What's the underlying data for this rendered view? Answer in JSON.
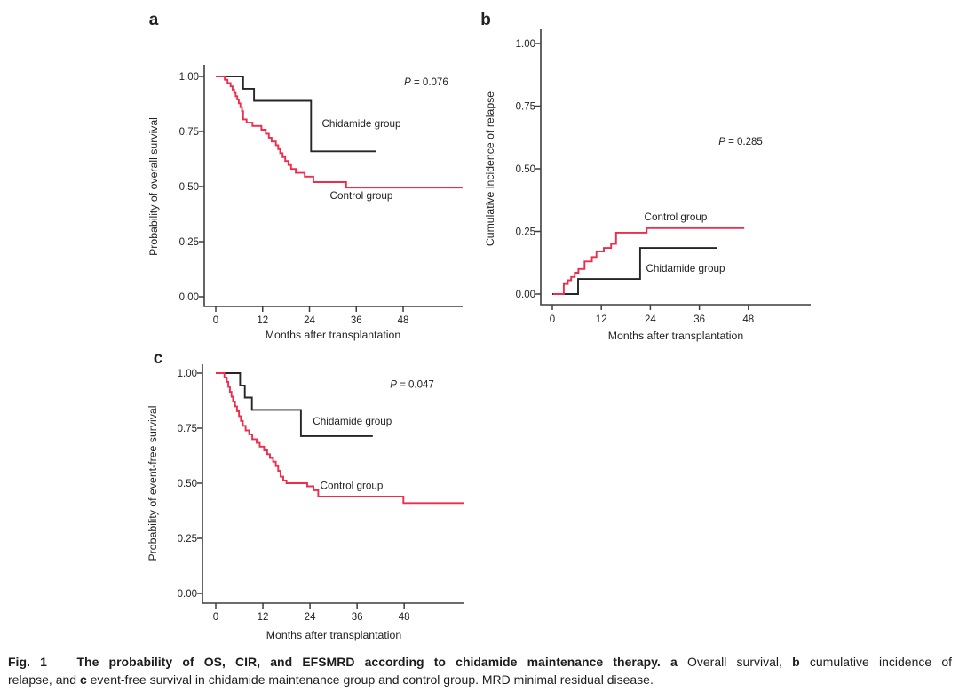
{
  "colors": {
    "control": "#ee2c4c",
    "chidamide": "#262626",
    "axis": "#3d3d3d",
    "text": "#222222"
  },
  "chart_data": [
    {
      "type": "line",
      "subtype": "kaplan-meier-step",
      "panel_letter": "a",
      "title": "",
      "xlabel": "Months after transplantation",
      "ylabel": "Probability of overall survival",
      "x_ticks": [
        0,
        12,
        24,
        36,
        48
      ],
      "x_tick_labels": [
        "0",
        "12",
        "24",
        "36",
        "48"
      ],
      "y_ticks": [
        1.0,
        0.75,
        0.5,
        0.25,
        0.0
      ],
      "y_tick_labels": [
        "1.00",
        "0.75",
        "0.50",
        "0.25",
        "0.00"
      ],
      "xlim": [
        -3,
        63.2
      ],
      "ylim": [
        -0.05,
        1.05
      ],
      "p_annotation": {
        "italic": "P",
        "rest": " = 0.076",
        "x": 53.9,
        "y": 0.976
      },
      "series": [
        {
          "name": "Chidamide group",
          "color_key": "chidamide",
          "label": {
            "text": "Chidamide group",
            "x": 37.3,
            "y": 0.786
          },
          "points": [
            [
              0,
              1.0
            ],
            [
              7,
              0.944
            ],
            [
              9.8,
              0.889
            ],
            [
              24.4,
              0.66
            ],
            [
              41,
              0.66
            ]
          ]
        },
        {
          "name": "Control group",
          "color_key": "control",
          "label": {
            "text": "Control group",
            "x": 37.3,
            "y": 0.46
          },
          "points": [
            [
              0,
              1.0
            ],
            [
              2.3,
              0.985
            ],
            [
              3.0,
              0.97
            ],
            [
              3.8,
              0.955
            ],
            [
              4.3,
              0.94
            ],
            [
              4.7,
              0.925
            ],
            [
              5.1,
              0.91
            ],
            [
              5.5,
              0.895
            ],
            [
              5.9,
              0.878
            ],
            [
              6.3,
              0.86
            ],
            [
              6.7,
              0.842
            ],
            [
              7.0,
              0.805
            ],
            [
              7.9,
              0.79
            ],
            [
              9.4,
              0.775
            ],
            [
              11.7,
              0.758
            ],
            [
              12.8,
              0.74
            ],
            [
              13.6,
              0.722
            ],
            [
              14.3,
              0.705
            ],
            [
              15.4,
              0.688
            ],
            [
              16.0,
              0.67
            ],
            [
              16.5,
              0.652
            ],
            [
              17.1,
              0.634
            ],
            [
              17.8,
              0.616
            ],
            [
              18.6,
              0.598
            ],
            [
              19.3,
              0.58
            ],
            [
              20.5,
              0.562
            ],
            [
              22.8,
              0.545
            ],
            [
              25.0,
              0.52
            ],
            [
              33.4,
              0.495
            ],
            [
              63.2,
              0.495
            ]
          ]
        }
      ]
    },
    {
      "type": "line",
      "subtype": "kaplan-meier-step",
      "panel_letter": "b",
      "title": "",
      "xlabel": "Months after transplantation",
      "ylabel": "Cumulative incidence of relapse",
      "x_ticks": [
        0,
        12,
        24,
        36,
        48
      ],
      "x_tick_labels": [
        "0",
        "12",
        "24",
        "36",
        "48"
      ],
      "y_ticks": [
        1.0,
        0.75,
        0.5,
        0.25,
        0.0
      ],
      "y_tick_labels": [
        "1.00",
        "0.75",
        "0.50",
        "0.25",
        "0.00"
      ],
      "xlim": [
        -3,
        63.3
      ],
      "ylim": [
        -0.05,
        1.06
      ],
      "p_annotation": {
        "italic": "P",
        "rest": " = 0.285",
        "x": 46.1,
        "y": 0.61
      },
      "series": [
        {
          "name": "Chidamide group",
          "color_key": "chidamide",
          "label": {
            "text": "Chidamide group",
            "x": 32.6,
            "y": 0.103
          },
          "points": [
            [
              0,
              0
            ],
            [
              6.3,
              0.06
            ],
            [
              21.5,
              0.184
            ],
            [
              40.4,
              0.184
            ]
          ]
        },
        {
          "name": "Control group",
          "color_key": "control",
          "label": {
            "text": "Control group",
            "x": 30.2,
            "y": 0.309
          },
          "points": [
            [
              0.2,
              0
            ],
            [
              2.8,
              0.04
            ],
            [
              3.8,
              0.055
            ],
            [
              4.6,
              0.068
            ],
            [
              5.5,
              0.085
            ],
            [
              6.4,
              0.1
            ],
            [
              7.9,
              0.13
            ],
            [
              9.7,
              0.148
            ],
            [
              10.8,
              0.17
            ],
            [
              12.6,
              0.184
            ],
            [
              14.4,
              0.2
            ],
            [
              15.6,
              0.245
            ],
            [
              23.1,
              0.263
            ],
            [
              47,
              0.263
            ]
          ]
        }
      ]
    },
    {
      "type": "line",
      "subtype": "kaplan-meier-step",
      "panel_letter": "c",
      "title": "",
      "xlabel": "Months after transplantation",
      "ylabel": "Probability of event-free survival",
      "x_ticks": [
        0,
        12,
        24,
        36,
        48
      ],
      "x_tick_labels": [
        "0",
        "12",
        "24",
        "36",
        "48"
      ],
      "y_ticks": [
        1.0,
        0.75,
        0.5,
        0.25,
        0.0
      ],
      "y_tick_labels": [
        "1.00",
        "0.75",
        "0.50",
        "0.25",
        "0.00"
      ],
      "xlim": [
        -3.4,
        63.3
      ],
      "ylim": [
        -0.05,
        1.04
      ],
      "p_annotation": {
        "italic": "P",
        "rest": " = 0.047",
        "x": 50,
        "y": 0.95
      },
      "series": [
        {
          "name": "Chidamide group",
          "color_key": "chidamide",
          "label": {
            "text": "Chidamide group",
            "x": 34.8,
            "y": 0.782
          },
          "points": [
            [
              0,
              1.0
            ],
            [
              6.2,
              0.944
            ],
            [
              7.4,
              0.889
            ],
            [
              9.2,
              0.833
            ],
            [
              21.7,
              0.714
            ],
            [
              40,
              0.714
            ]
          ]
        },
        {
          "name": "Control group",
          "color_key": "control",
          "label": {
            "text": "Control group",
            "x": 34.6,
            "y": 0.49
          },
          "points": [
            [
              0,
              1.0
            ],
            [
              2.2,
              0.98
            ],
            [
              2.8,
              0.96
            ],
            [
              3.2,
              0.937
            ],
            [
              3.6,
              0.915
            ],
            [
              4.0,
              0.893
            ],
            [
              4.4,
              0.871
            ],
            [
              4.9,
              0.849
            ],
            [
              5.4,
              0.827
            ],
            [
              5.9,
              0.805
            ],
            [
              6.4,
              0.783
            ],
            [
              6.9,
              0.761
            ],
            [
              7.6,
              0.74
            ],
            [
              8.5,
              0.722
            ],
            [
              9.3,
              0.7
            ],
            [
              10.4,
              0.683
            ],
            [
              11.2,
              0.666
            ],
            [
              12.3,
              0.649
            ],
            [
              13.1,
              0.632
            ],
            [
              13.8,
              0.615
            ],
            [
              14.6,
              0.598
            ],
            [
              15.3,
              0.578
            ],
            [
              15.9,
              0.556
            ],
            [
              16.5,
              0.53
            ],
            [
              17.2,
              0.512
            ],
            [
              18.0,
              0.5
            ],
            [
              23.3,
              0.486
            ],
            [
              24.9,
              0.468
            ],
            [
              26.1,
              0.44
            ],
            [
              47.8,
              0.41
            ],
            [
              63.3,
              0.41
            ]
          ]
        }
      ]
    }
  ],
  "caption": {
    "lines": [
      [
        {
          "text": "Fig. 1   ",
          "bold": true
        },
        {
          "text": "The probability of OS, CIR, and EFSMRD according to chidamide maintenance therapy.",
          "bold": true
        },
        {
          "text": " ",
          "bold": false
        },
        {
          "text": "a",
          "bold": true
        },
        {
          "text": " Overall survival, ",
          "bold": false
        },
        {
          "text": "b",
          "bold": true
        },
        {
          "text": " cumulative incidence of",
          "bold": false
        }
      ],
      [
        {
          "text": "relapse, and ",
          "bold": false
        },
        {
          "text": "c",
          "bold": true
        },
        {
          "text": " event-free survival in chidamide maintenance group and control group. MRD minimal residual disease.",
          "bold": false
        }
      ]
    ]
  }
}
